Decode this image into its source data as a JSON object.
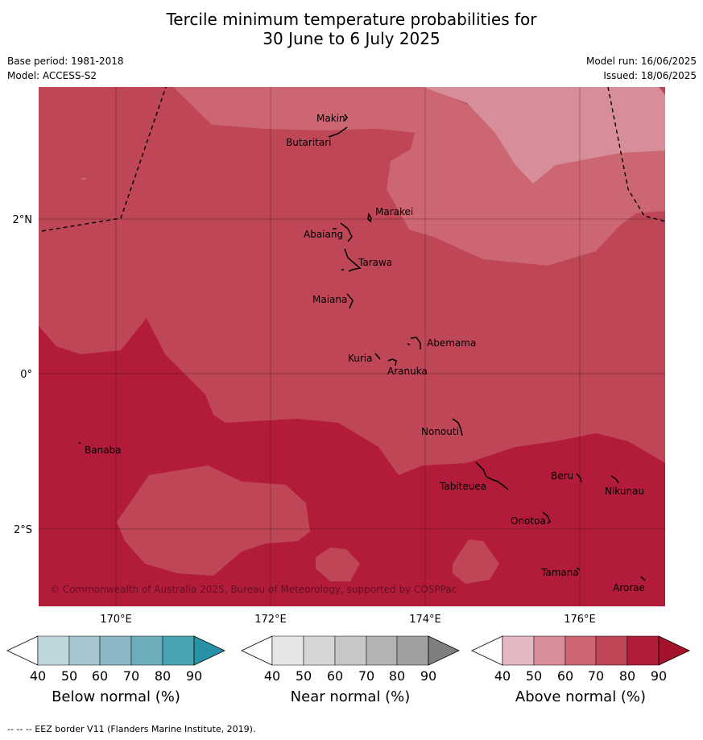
{
  "header": {
    "title_line1": "Tercile minimum temperature probabilities for",
    "title_line2": "30 June to 6 July 2025",
    "base_period": "Base period: 1981-2018",
    "model": "Model: ACCESS-S2",
    "model_run": "Model run: 16/06/2025",
    "issued": "Issued: 18/06/2025"
  },
  "map": {
    "lon_labels": [
      "170°E",
      "172°E",
      "174°E",
      "176°E"
    ],
    "lat_labels": [
      "2°N",
      "0°",
      "2°S"
    ],
    "places": [
      "Makin",
      "Butaritari",
      "Marakei",
      "Abaiang",
      "Tarawa",
      "Maiana",
      "Abemama",
      "Kuria",
      "Aranuka",
      "Nonouti",
      "Banaba",
      "Beru",
      "Nikunau",
      "Tabiteuea",
      "Onotoa",
      "Tamana",
      "Arorae"
    ],
    "credit": "© Commonwealth of Australia 2025, Bureau of Meteorology, supported by COSPPac",
    "colors": {
      "above_40": "#ffffff",
      "above_50": "#e3b8c1",
      "above_60": "#d78e98",
      "above_70": "#cb6672",
      "above_80": "#be4656",
      "above_90": "#b21c3a"
    }
  },
  "colorbars": [
    {
      "title": "Below normal (%)",
      "ticks": [
        "40",
        "50",
        "60",
        "70",
        "80",
        "90"
      ],
      "colors": [
        "#ffffff",
        "#c0d6dd",
        "#a5c6cf",
        "#8ab8c4",
        "#6dacba",
        "#49a3b2",
        "#2893a6"
      ]
    },
    {
      "title": "Near normal (%)",
      "ticks": [
        "40",
        "50",
        "60",
        "70",
        "80",
        "90"
      ],
      "colors": [
        "#ffffff",
        "#e6e6e6",
        "#d6d6d6",
        "#c7c7c7",
        "#b3b3b3",
        "#a0a0a0",
        "#7f7f7f"
      ]
    },
    {
      "title": "Above normal (%)",
      "ticks": [
        "40",
        "50",
        "60",
        "70",
        "80",
        "90"
      ],
      "colors": [
        "#ffffff",
        "#e3b8c1",
        "#d78e98",
        "#cb6672",
        "#be4656",
        "#b21c3a",
        "#a5122c"
      ]
    }
  ],
  "footer": "--  --  -- EEZ border V11 (Flanders Marine Institute, 2019)."
}
